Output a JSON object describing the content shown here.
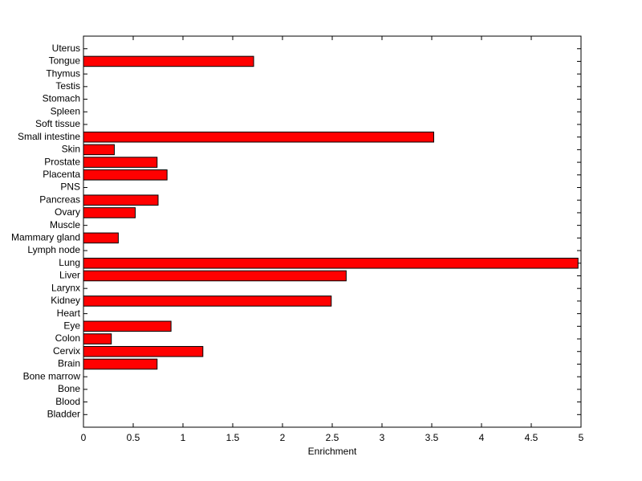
{
  "chart_data": {
    "type": "barh",
    "xlabel": "Enrichment",
    "categories": [
      "Bladder",
      "Blood",
      "Bone",
      "Bone marrow",
      "Brain",
      "Cervix",
      "Colon",
      "Eye",
      "Heart",
      "Kidney",
      "Larynx",
      "Liver",
      "Lung",
      "Lymph node",
      "Mammary gland",
      "Muscle",
      "Ovary",
      "Pancreas",
      "PNS",
      "Placenta",
      "Prostate",
      "Skin",
      "Small intestine",
      "Soft tissue",
      "Spleen",
      "Stomach",
      "Testis",
      "Thymus",
      "Tongue",
      "Uterus"
    ],
    "values": [
      0,
      0,
      0,
      0,
      0.74,
      1.2,
      0.28,
      0.88,
      0,
      2.49,
      0,
      2.64,
      4.97,
      0,
      0.35,
      0,
      0.52,
      0.75,
      0,
      0.84,
      0.74,
      0.31,
      3.52,
      0,
      0,
      0,
      0,
      0,
      1.71,
      0
    ],
    "color": "#ff0000",
    "xlim": [
      0,
      5
    ],
    "xticks": [
      0,
      0.5,
      1,
      1.5,
      2,
      2.5,
      3,
      3.5,
      4,
      4.5,
      5
    ]
  }
}
